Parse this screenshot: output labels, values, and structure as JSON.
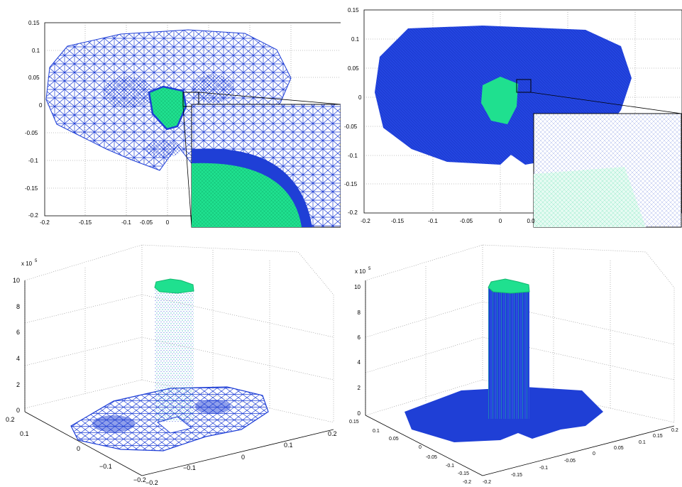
{
  "colors": {
    "mesh_blue": "#1f3fd6",
    "mesh_green": "#1fe08f",
    "mesh_teal": "#1aa8b8",
    "grid": "#555555"
  },
  "top_left": {
    "x_ticks": [
      "-0.2",
      "-0.15",
      "-0.1",
      "-0.05",
      "0"
    ],
    "y_ticks": [
      "0.15",
      "0.1",
      "0.05",
      "0",
      "-0.05",
      "-0.1",
      "-0.15",
      "-0.2"
    ]
  },
  "top_right": {
    "x_ticks": [
      "-0.2",
      "-0.15",
      "-0.1",
      "-0.05",
      "0",
      "0.0"
    ],
    "y_ticks": [
      "0.15",
      "0.1",
      "0.05",
      "0",
      "-0.05",
      "-0.1",
      "-0.15",
      "-0.2"
    ]
  },
  "bottom_left": {
    "exponent_label": "x 10",
    "exponent_power": "5",
    "z_ticks": [
      "10",
      "8",
      "6",
      "4",
      "2",
      "0"
    ],
    "y_ticks": [
      "0.2",
      "0.1",
      "0",
      "−0.1",
      "−0.2"
    ],
    "x_ticks": [
      "−0.2",
      "−0.1",
      "0",
      "0.1",
      "0.2"
    ]
  },
  "bottom_right": {
    "exponent_label": "x 10",
    "exponent_power": "5",
    "z_ticks": [
      "10",
      "8",
      "6",
      "4",
      "2",
      "0"
    ],
    "y_ticks": [
      "0.15",
      "0.1",
      "0.05",
      "0",
      "-0.05",
      "-0.1",
      "-0.15",
      "-0.2"
    ],
    "x_ticks": [
      "-0.2",
      "-0.15",
      "-0.1",
      "-0.05",
      "0",
      "0.05",
      "0.1",
      "0.15",
      "0.2"
    ]
  }
}
